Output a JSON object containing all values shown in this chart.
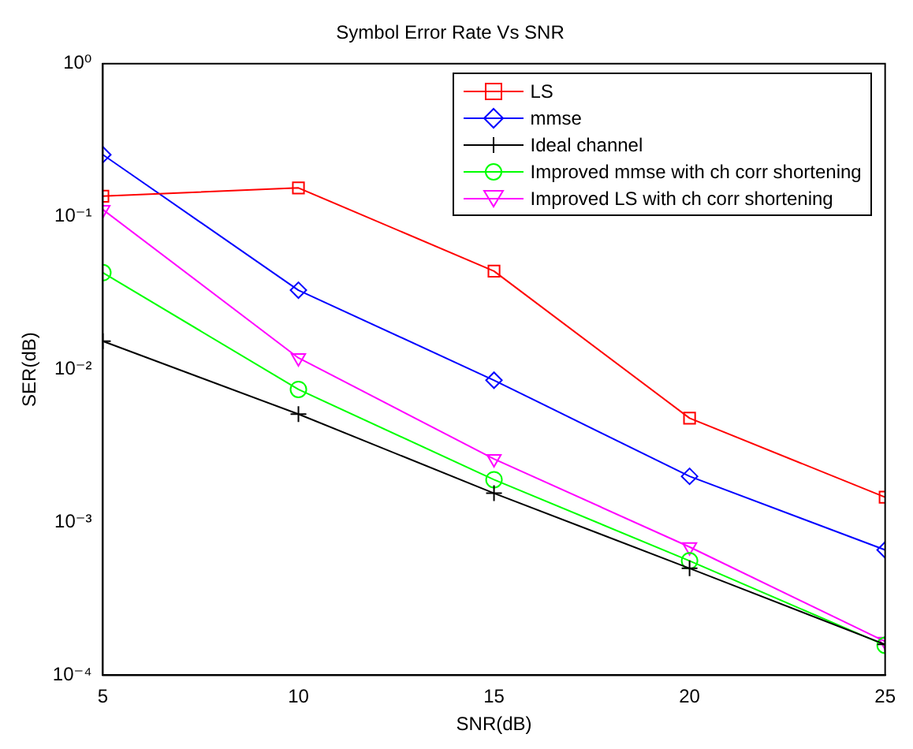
{
  "chart_data": {
    "type": "line",
    "title": "Symbol Error Rate Vs SNR",
    "xlabel": "SNR(dB)",
    "ylabel": "SER(dB)",
    "x": [
      5,
      10,
      15,
      20,
      25
    ],
    "series": [
      {
        "name": "LS",
        "color": "#ff0000",
        "marker": "square",
        "values": [
          0.136,
          0.154,
          0.044,
          0.0048,
          0.00146
        ]
      },
      {
        "name": "mmse",
        "color": "#0000ff",
        "marker": "diamond",
        "values": [
          0.254,
          0.033,
          0.0085,
          0.002,
          0.00066
        ]
      },
      {
        "name": "Ideal channel",
        "color": "#000000",
        "marker": "cross",
        "values": [
          0.0153,
          0.0051,
          0.00155,
          0.0005,
          0.000159
        ]
      },
      {
        "name": "Improved mmse with ch corr shortening",
        "color": "#00ff00",
        "marker": "circle",
        "values": [
          0.043,
          0.0074,
          0.0019,
          0.00056,
          0.000157
        ]
      },
      {
        "name": "Improved LS with ch corr shortening",
        "color": "#ff00ff",
        "marker": "triangle",
        "values": [
          0.111,
          0.0119,
          0.0026,
          0.00069,
          0.000166
        ]
      }
    ],
    "xlim": [
      5,
      25
    ],
    "xticks": [
      5,
      10,
      15,
      20,
      25
    ],
    "ylim": [
      0.0001,
      1
    ],
    "yticks": [
      {
        "value": 0.0001,
        "label": "10⁻⁴"
      },
      {
        "value": 0.001,
        "label": "10⁻³"
      },
      {
        "value": 0.01,
        "label": "10⁻²"
      },
      {
        "value": 0.1,
        "label": "10⁻¹"
      },
      {
        "value": 1,
        "label": "10⁰"
      }
    ],
    "log": "y",
    "grid": false,
    "legend": "top right",
    "line_style": "solid"
  }
}
